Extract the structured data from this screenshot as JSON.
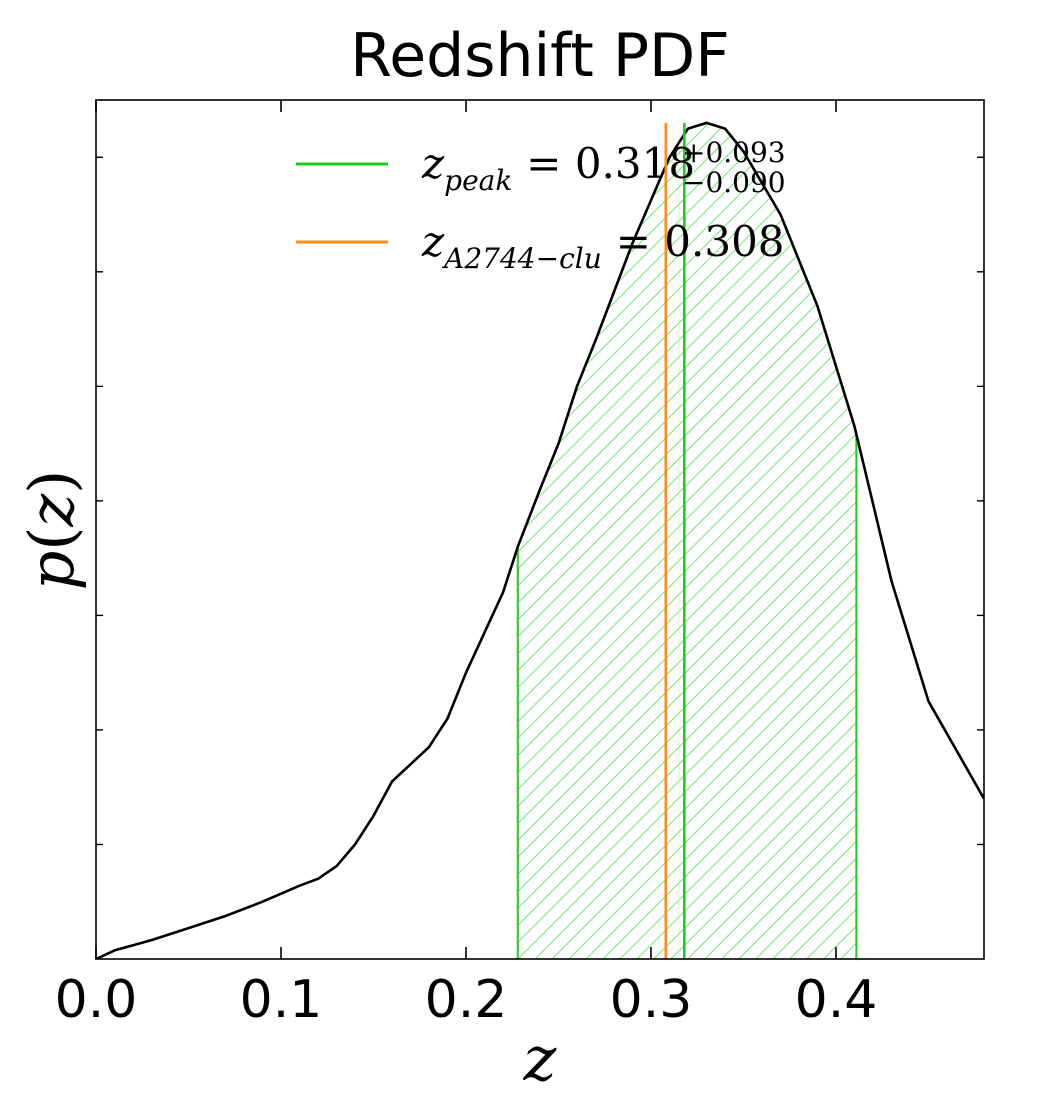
{
  "chart_data": {
    "type": "line",
    "title": "Redshift PDF",
    "xlabel": "z",
    "ylabel": "p(z)",
    "xlim": [
      0.0,
      0.48
    ],
    "ylim": [
      0,
      1.5
    ],
    "xticks": [
      "0.0",
      "0.1",
      "0.2",
      "0.3",
      "0.4"
    ],
    "grid": false,
    "legend_position": "top-center",
    "series": [
      {
        "kind": "pdf_curve",
        "color": "#000000",
        "x": [
          0.0,
          0.01,
          0.03,
          0.05,
          0.07,
          0.09,
          0.11,
          0.12,
          0.13,
          0.14,
          0.15,
          0.16,
          0.17,
          0.18,
          0.19,
          0.2,
          0.21,
          0.22,
          0.228,
          0.24,
          0.25,
          0.26,
          0.27,
          0.29,
          0.31,
          0.32,
          0.33,
          0.34,
          0.35,
          0.37,
          0.39,
          0.41,
          0.43,
          0.45,
          0.48
        ],
        "y": [
          0.0,
          0.015,
          0.033,
          0.054,
          0.075,
          0.1,
          0.128,
          0.14,
          0.162,
          0.2,
          0.25,
          0.31,
          0.34,
          0.37,
          0.42,
          0.5,
          0.57,
          0.64,
          0.72,
          0.82,
          0.9,
          1.0,
          1.08,
          1.25,
          1.4,
          1.45,
          1.46,
          1.45,
          1.41,
          1.3,
          1.14,
          0.93,
          0.66,
          0.45,
          0.28
        ]
      }
    ],
    "legend": [
      {
        "color": "#22c922",
        "base": "z",
        "subscript": "peak",
        "value": "= 0.318",
        "sup": "+0.093",
        "sub": "−0.090"
      },
      {
        "color": "#ff8c1a",
        "base": "z",
        "subscript": "A2744−clu",
        "value": "= 0.308"
      }
    ],
    "vlines": [
      {
        "x": 0.318,
        "color": "#22c922",
        "label": "z_peak"
      },
      {
        "x": 0.308,
        "color": "#ff8c1a",
        "label": "z_A2744-clu"
      }
    ],
    "shaded_interval": {
      "from": 0.228,
      "to": 0.411,
      "color": "#22c922",
      "hatch": "diagonal"
    }
  }
}
